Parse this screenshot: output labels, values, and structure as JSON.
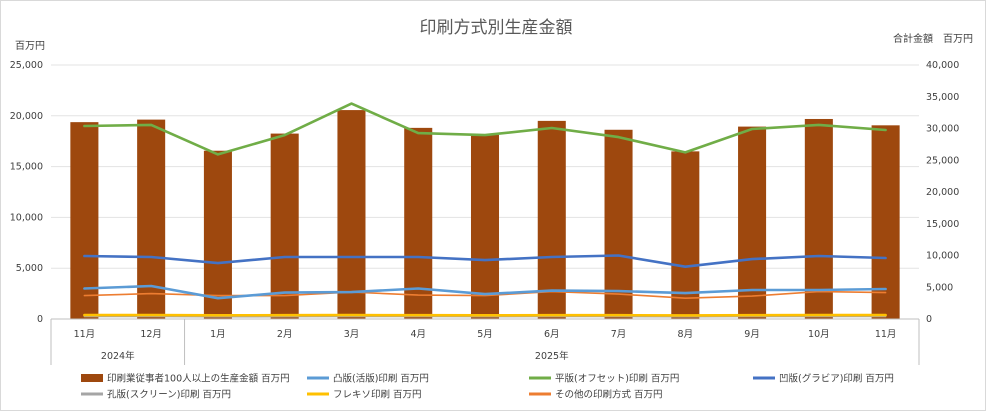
{
  "chart_data": {
    "type": "bar",
    "title": "印刷方式別生産金額",
    "left_axis": {
      "unit_label": "百万円",
      "ylim": [
        0,
        25000
      ],
      "ticks": [
        "0",
        "5,000",
        "10,000",
        "15,000",
        "20,000",
        "25,000"
      ]
    },
    "right_axis": {
      "unit_label": "合計金額　百万円",
      "ylim": [
        0,
        40000
      ],
      "ticks": [
        "0",
        "5,000",
        "10,000",
        "15,000",
        "20,000",
        "25,000",
        "30,000",
        "35,000",
        "40,000"
      ]
    },
    "categories": [
      "11月",
      "12月",
      "1月",
      "2月",
      "3月",
      "4月",
      "5月",
      "6月",
      "7月",
      "8月",
      "9月",
      "10月",
      "11月"
    ],
    "year_groups": [
      {
        "label": "2024年",
        "start": 0,
        "end": 1
      },
      {
        "label": "2025年",
        "start": 2,
        "end": 12
      }
    ],
    "gridlines": true,
    "legend_position": "bottom",
    "series": [
      {
        "name": "印刷業従事者100人以上の生産金額 百万円",
        "type": "bar",
        "axis": "right",
        "color": "#9e480e",
        "values": [
          31000,
          31400,
          26500,
          29200,
          32900,
          30100,
          29000,
          31200,
          29800,
          26400,
          30300,
          31500,
          30500
        ]
      },
      {
        "name": "凸版(活版)印刷 百万円",
        "type": "line",
        "axis": "left",
        "color": "#5b9bd5",
        "values": [
          3000,
          3250,
          2050,
          2600,
          2650,
          3000,
          2450,
          2800,
          2750,
          2550,
          2850,
          2850,
          2950
        ]
      },
      {
        "name": "平版(オフセット)印刷 百万円",
        "type": "line",
        "axis": "left",
        "color": "#70ad47",
        "values": [
          19000,
          19100,
          16200,
          18100,
          21200,
          18300,
          18100,
          18800,
          17900,
          16400,
          18700,
          19100,
          18600
        ]
      },
      {
        "name": "凹版(グラビア)印刷 百万円",
        "type": "line",
        "axis": "left",
        "color": "#4472c4",
        "values": [
          6200,
          6100,
          5500,
          6100,
          6100,
          6100,
          5800,
          6100,
          6250,
          5150,
          5900,
          6200,
          6000
        ]
      },
      {
        "name": "孔版(スクリーン)印刷 百万円",
        "type": "line",
        "axis": "left",
        "color": "#a5a5a5",
        "values": [
          250,
          250,
          230,
          240,
          250,
          250,
          240,
          250,
          250,
          230,
          250,
          260,
          250
        ]
      },
      {
        "name": "フレキソ印刷 百万円",
        "type": "line",
        "axis": "left",
        "color": "#ffc000",
        "values": [
          380,
          380,
          360,
          370,
          380,
          370,
          360,
          370,
          370,
          350,
          370,
          380,
          380
        ]
      },
      {
        "name": "その他の印刷方式 百万円",
        "type": "line",
        "axis": "left",
        "color": "#ed7d31",
        "values": [
          2300,
          2500,
          2300,
          2300,
          2650,
          2350,
          2300,
          2700,
          2450,
          2050,
          2250,
          2700,
          2600
        ]
      }
    ]
  }
}
